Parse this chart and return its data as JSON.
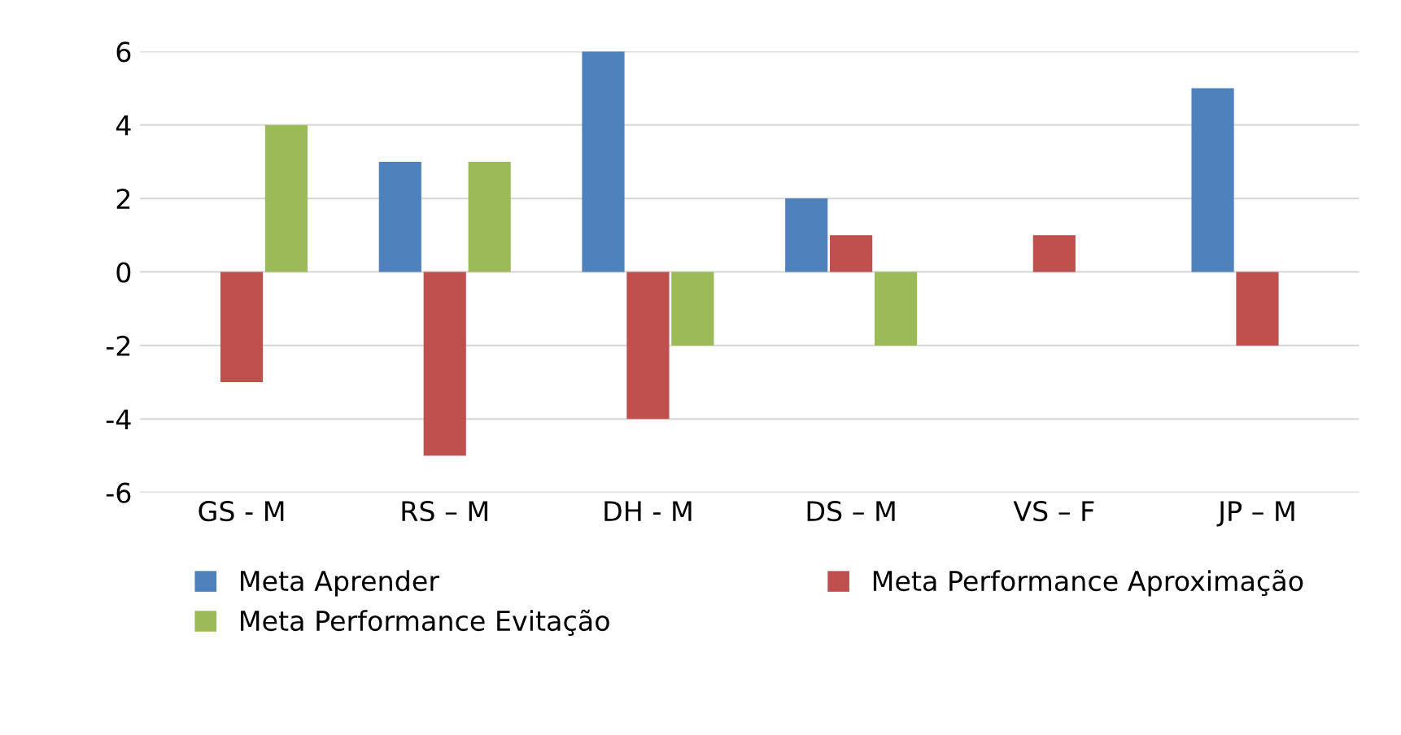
{
  "chart_data": {
    "type": "bar",
    "categories": [
      "GS - M",
      "RS – M",
      "DH - M",
      "DS – M",
      "VS – F",
      "JP – M"
    ],
    "series": [
      {
        "name": "Meta Aprender",
        "color": "#4f81bd",
        "values": [
          0,
          3,
          6,
          2,
          0,
          5
        ]
      },
      {
        "name": "Meta Performance Aproximação",
        "color": "#c0504d",
        "values": [
          -3,
          -5,
          -4,
          1,
          1,
          -2
        ]
      },
      {
        "name": "Meta Performance Evitação",
        "color": "#9bbb59",
        "values": [
          4,
          3,
          -2,
          -2,
          0,
          0
        ]
      }
    ],
    "ylim": [
      -6,
      6
    ],
    "yticks": [
      -6,
      -4,
      -2,
      0,
      2,
      4,
      6
    ],
    "grid": "y",
    "legend": "bottom"
  }
}
